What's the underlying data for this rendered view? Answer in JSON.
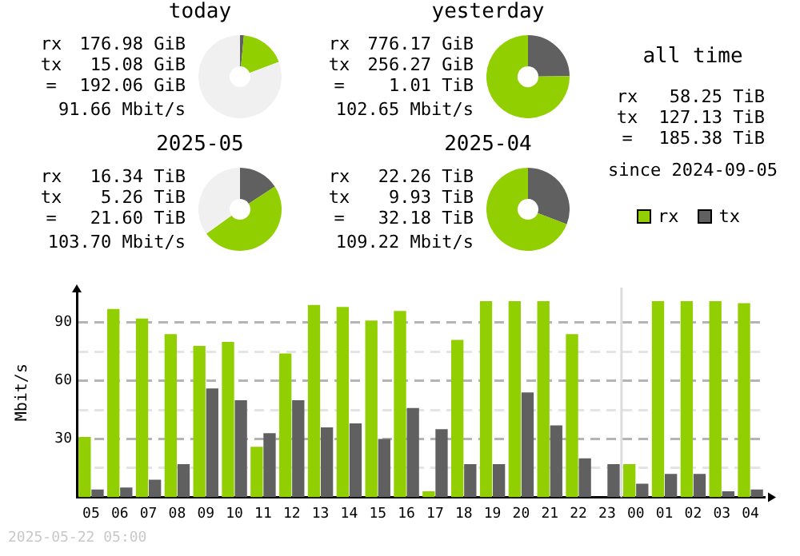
{
  "chart_data": [
    {
      "type": "donut",
      "title": "today",
      "categories": [
        null,
        null,
        null
      ],
      "values": [
        1.5,
        17.7,
        80.8
      ],
      "colors": [
        "#606060",
        "#92cf00",
        "#f0f0f0"
      ],
      "annotations": [
        "rx 176.98 GiB",
        "tx 15.08 GiB",
        "= 192.06 GiB",
        "91.66 Mbit/s"
      ]
    },
    {
      "type": "donut",
      "title": "yesterday",
      "categories": [
        null,
        null
      ],
      "values": [
        24.8,
        75.2
      ],
      "colors": [
        "#606060",
        "#92cf00"
      ],
      "annotations": [
        "rx 776.17 GiB",
        "tx 256.27 GiB",
        "= 1.01 TiB",
        "102.65 Mbit/s"
      ]
    },
    {
      "type": "other",
      "title": "all time",
      "annotations": [
        "rx 58.25 TiB",
        "tx 127.13 TiB",
        "= 185.38 TiB",
        "since 2024-09-05"
      ]
    },
    {
      "type": "donut",
      "title": "2025-05",
      "categories": [
        null,
        null,
        null
      ],
      "values": [
        15.8,
        49.2,
        35
      ],
      "colors": [
        "#606060",
        "#92cf00",
        "#f0f0f0"
      ],
      "annotations": [
        "rx 16.34 TiB",
        "tx 5.26 TiB",
        "= 21.60 TiB",
        "103.70 Mbit/s"
      ]
    },
    {
      "type": "donut",
      "title": "2025-04",
      "categories": [
        null,
        null
      ],
      "values": [
        30.9,
        69.1
      ],
      "colors": [
        "#606060",
        "#92cf00"
      ],
      "annotations": [
        "rx 22.26 TiB",
        "tx 9.93 TiB",
        "= 32.18 TiB",
        "109.22 Mbit/s"
      ]
    },
    {
      "type": "bar",
      "ylabel": "Mbit/s",
      "categories": [
        "05",
        "06",
        "07",
        "08",
        "09",
        "10",
        "11",
        "12",
        "13",
        "14",
        "15",
        "16",
        "17",
        "18",
        "19",
        "20",
        "21",
        "22",
        "23",
        "00",
        "01",
        "02",
        "03",
        "04"
      ],
      "series": [
        {
          "name": "rx",
          "color": "#92cf00",
          "values": [
            31,
            97,
            92,
            84,
            78,
            80,
            26,
            74,
            99,
            98,
            91,
            96,
            3,
            81,
            101,
            101,
            101,
            84,
            0,
            17,
            101,
            101,
            101,
            100
          ]
        },
        {
          "name": "tx",
          "color": "#606060",
          "values": [
            4,
            5,
            9,
            17,
            56,
            50,
            33,
            50,
            36,
            38,
            30,
            46,
            35,
            17,
            17,
            54,
            37,
            20,
            17,
            7,
            12,
            12,
            3,
            4
          ]
        }
      ],
      "ylim": [
        0,
        108
      ],
      "yticks": [
        {
          "value": 15,
          "label": null
        },
        30,
        {
          "value": 45,
          "label": null
        },
        60,
        {
          "value": 75,
          "label": null
        },
        90
      ],
      "grid": "y",
      "legend": "top right",
      "ref_lines": [
        {
          "axis": "x",
          "value": "00",
          "color": "#dddddd"
        }
      ],
      "annotations": [
        "2025-05-22 05:00"
      ]
    }
  ]
}
